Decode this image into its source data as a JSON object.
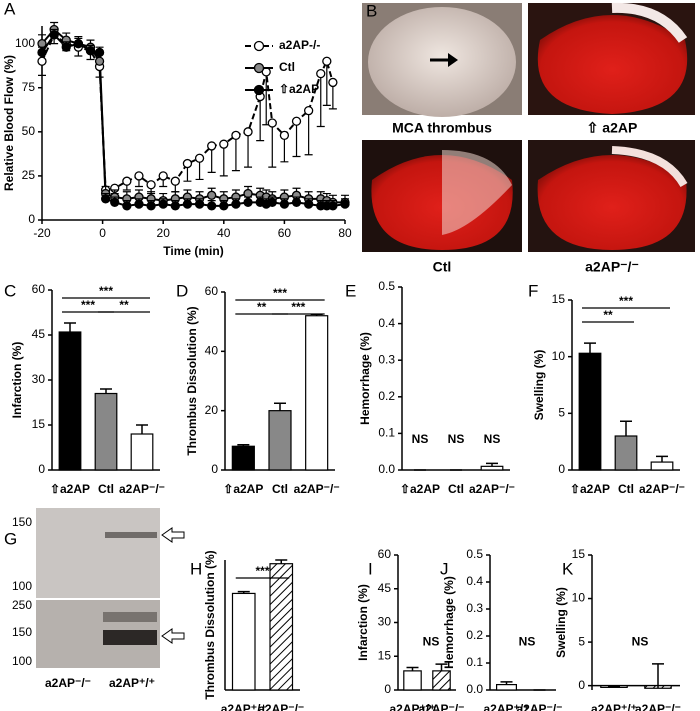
{
  "chart_data": [
    {
      "type": "line",
      "panel": "A",
      "xlabel": "Time (min)",
      "ylabel": "Relative Blood Flow (%)",
      "x": [
        -20,
        -16,
        -12,
        -8,
        -4,
        -1,
        1,
        4,
        8,
        12,
        16,
        20,
        24,
        28,
        32,
        36,
        40,
        44,
        48,
        52,
        54,
        56,
        60,
        64,
        68,
        72,
        74,
        76,
        80
      ],
      "xlim": [
        -20,
        80
      ],
      "xticks": [
        -20,
        0,
        20,
        40,
        60,
        80
      ],
      "ylim": [
        0,
        110
      ],
      "yticks": [
        0,
        25,
        50,
        75,
        100
      ],
      "legend": "upper right",
      "series": [
        {
          "name": "a2AP-/-",
          "color": "#ffffff",
          "linestyle": "dashed",
          "error_direction": "down",
          "values": [
            90,
            105,
            100,
            98,
            96,
            87,
            17,
            18,
            22,
            25,
            20,
            25,
            22,
            32,
            35,
            42,
            43,
            48,
            50,
            70,
            84,
            55,
            48,
            56,
            62,
            83,
            90,
            78,
            null
          ],
          "errors": [
            8,
            5,
            4,
            5,
            5,
            6,
            3,
            3,
            5,
            6,
            5,
            6,
            6,
            10,
            12,
            15,
            18,
            20,
            20,
            25,
            30,
            25,
            15,
            20,
            25,
            30,
            25,
            15,
            null
          ]
        },
        {
          "name": "Ctl",
          "color": "#888888",
          "linestyle": "solid",
          "error_direction": "up",
          "values": [
            100,
            108,
            102,
            100,
            98,
            90,
            15,
            13,
            12,
            13,
            12,
            11,
            12,
            13,
            12,
            14,
            12,
            13,
            15,
            14,
            13,
            12,
            13,
            14,
            12,
            12,
            11,
            10,
            10
          ],
          "errors": [
            5,
            4,
            4,
            4,
            4,
            5,
            4,
            4,
            4,
            4,
            4,
            4,
            4,
            4,
            4,
            4,
            4,
            4,
            4,
            4,
            4,
            4,
            4,
            4,
            4,
            4,
            4,
            4,
            4
          ]
        },
        {
          "name": "⇧a2AP",
          "color": "#000000",
          "linestyle": "solid",
          "error_direction": "up",
          "values": [
            95,
            105,
            98,
            100,
            96,
            95,
            12,
            10,
            8,
            9,
            8,
            9,
            8,
            9,
            9,
            8,
            8,
            9,
            10,
            10,
            9,
            10,
            9,
            10,
            9,
            8,
            8,
            8,
            9
          ],
          "errors": [
            3,
            3,
            3,
            3,
            3,
            3,
            3,
            3,
            3,
            3,
            3,
            3,
            3,
            3,
            3,
            3,
            3,
            3,
            3,
            3,
            3,
            3,
            3,
            3,
            3,
            3,
            3,
            3,
            3
          ]
        }
      ]
    },
    {
      "type": "bar",
      "panel": "C",
      "ylabel": "Infarction (%)",
      "categories": [
        "⇧a2AP",
        "Ctl",
        "a2AP⁻/⁻"
      ],
      "values": [
        46,
        25.5,
        12
      ],
      "errors": [
        3,
        1.5,
        3
      ],
      "colors": [
        "#000000",
        "#888888",
        "#ffffff"
      ],
      "ylim": [
        0,
        60
      ],
      "yticks": [
        0,
        15,
        30,
        45,
        60
      ],
      "brackets": [
        {
          "label": "***",
          "between": [
            "⇧a2AP",
            "a2AP⁻/⁻"
          ]
        },
        {
          "label": "***",
          "between": [
            "⇧a2AP",
            "Ctl"
          ]
        },
        {
          "label": "**",
          "between": [
            "Ctl",
            "a2AP⁻/⁻"
          ]
        }
      ]
    },
    {
      "type": "bar",
      "panel": "D",
      "ylabel": "Thrombus Dissolution (%)",
      "categories": [
        "⇧a2AP",
        "Ctl",
        "a2AP⁻/⁻"
      ],
      "values": [
        8,
        20,
        52
      ],
      "errors": [
        0.5,
        2.5,
        0.5
      ],
      "colors": [
        "#000000",
        "#888888",
        "#ffffff"
      ],
      "ylim": [
        0,
        60
      ],
      "yticks": [
        0,
        20,
        40,
        60
      ],
      "brackets": [
        {
          "label": "***",
          "between": [
            "⇧a2AP",
            "a2AP⁻/⁻"
          ]
        },
        {
          "label": "**",
          "between": [
            "⇧a2AP",
            "Ctl"
          ]
        },
        {
          "label": "***",
          "between": [
            "Ctl",
            "a2AP⁻/⁻"
          ]
        }
      ]
    },
    {
      "type": "bar",
      "panel": "E",
      "ylabel": "Hemorrhage (%)",
      "categories": [
        "⇧a2AP",
        "Ctl",
        "a2AP⁻/⁻"
      ],
      "values": [
        0,
        0,
        0.01
      ],
      "errors": [
        0,
        0,
        0.008
      ],
      "colors": [
        "#000000",
        "#888888",
        "#ffffff"
      ],
      "ylim": [
        0,
        0.5
      ],
      "yticks": [
        {
          "value": 0,
          "label": "0.0"
        },
        0.1,
        0.2,
        0.3,
        0.4,
        0.5
      ],
      "annotations": [
        "NS",
        "NS",
        "NS"
      ]
    },
    {
      "type": "bar",
      "panel": "F",
      "ylabel": "Swelling (%)",
      "categories": [
        "⇧a2AP",
        "Ctl",
        "a2AP⁻/⁻"
      ],
      "values": [
        10.3,
        3,
        0.7
      ],
      "errors": [
        0.9,
        1.3,
        0.5
      ],
      "colors": [
        "#000000",
        "#888888",
        "#ffffff"
      ],
      "ylim": [
        0,
        15
      ],
      "yticks": [
        0,
        5,
        10,
        15
      ],
      "brackets": [
        {
          "label": "**",
          "between": [
            "⇧a2AP",
            "Ctl"
          ]
        },
        {
          "label": "***",
          "between": [
            "⇧a2AP",
            "a2AP⁻/⁻"
          ]
        }
      ]
    },
    {
      "type": "bar",
      "panel": "H",
      "ylabel": "Thrombus Dissolution (%)",
      "categories": [
        "a2AP⁺/⁺",
        "a2AP⁻/⁻"
      ],
      "values": [
        52,
        68
      ],
      "errors": [
        1,
        2
      ],
      "colors": [
        "#ffffff",
        "#ffffff"
      ],
      "hatch": [
        false,
        true
      ],
      "ylim": [
        0,
        70
      ],
      "brackets": [
        {
          "label": "***",
          "between": [
            "a2AP⁺/⁺",
            "a2AP⁻/⁻"
          ]
        }
      ]
    },
    {
      "type": "bar",
      "panel": "I",
      "ylabel": "Infarction (%)",
      "categories": [
        "a2AP⁺/⁺",
        "a2AP⁻/⁻"
      ],
      "values": [
        8.5,
        8.5
      ],
      "errors": [
        1.5,
        3
      ],
      "colors": [
        "#ffffff",
        "#ffffff"
      ],
      "hatch": [
        false,
        true
      ],
      "ylim": [
        0,
        60
      ],
      "yticks": [
        0,
        15,
        30,
        45,
        60
      ],
      "annotation": "NS"
    },
    {
      "type": "bar",
      "panel": "J",
      "ylabel": "Hemorrhage (%)",
      "categories": [
        "a2AP⁺/⁺",
        "a2AP⁻/⁻"
      ],
      "values": [
        0.02,
        0
      ],
      "errors": [
        0.01,
        0
      ],
      "colors": [
        "#ffffff",
        "#ffffff"
      ],
      "hatch": [
        false,
        true
      ],
      "ylim": [
        0,
        0.5
      ],
      "yticks": [
        {
          "value": 0,
          "label": "0.0"
        },
        0.1,
        0.2,
        0.3,
        0.4,
        0.5
      ],
      "annotation": "NS"
    },
    {
      "type": "bar",
      "panel": "K",
      "ylabel": "Swelling (%)",
      "categories": [
        "a2AP⁺/⁺",
        "a2AP⁻/⁻"
      ],
      "values": [
        -0.2,
        -0.3
      ],
      "errors": [
        0.1,
        2.8
      ],
      "colors": [
        "#ffffff",
        "#ffffff"
      ],
      "hatch": [
        false,
        true
      ],
      "ylim": [
        -0.5,
        15
      ],
      "yticks": [
        0,
        5,
        10,
        15
      ],
      "annotation": "NS"
    }
  ],
  "images": [
    {
      "panel": "B",
      "captions": [
        "MCA thrombus",
        "⇧ a2AP",
        "Ctl",
        "a2AP⁻/⁻"
      ]
    },
    {
      "panel": "G",
      "markers_top": [
        150,
        100
      ],
      "markers_bottom": [
        250,
        150,
        100
      ],
      "lanes": [
        "a2AP⁻/⁻",
        "a2AP⁺/⁺"
      ]
    }
  ]
}
